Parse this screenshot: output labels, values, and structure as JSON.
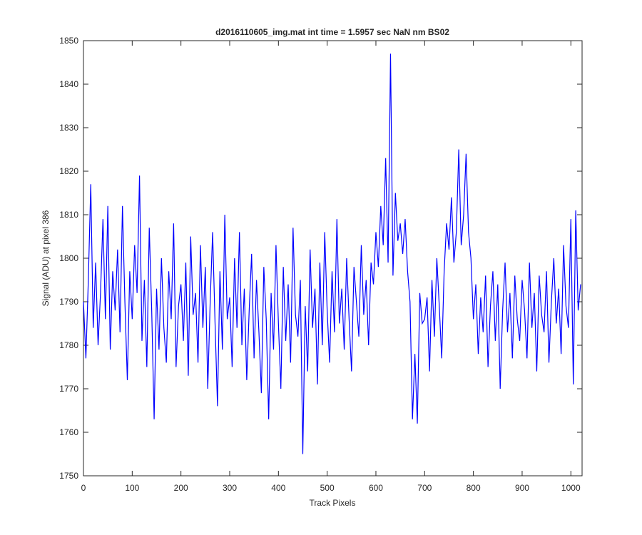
{
  "chart_data": {
    "type": "line",
    "title": "d2016110605_img.mat int time = 1.5957 sec  NaN nm BS02",
    "x_label": "Track Pixels",
    "y_label": "Signal (ADU) at pixel 386",
    "xlim": [
      0,
      1023
    ],
    "ylim": [
      1750,
      1850
    ],
    "xticks": [
      0,
      100,
      200,
      300,
      400,
      500,
      600,
      700,
      800,
      900,
      1000
    ],
    "yticks": [
      1750,
      1760,
      1770,
      1780,
      1790,
      1800,
      1810,
      1820,
      1830,
      1840,
      1850
    ],
    "series": [
      {
        "color": "#0000ff",
        "x": [
          0,
          5,
          10,
          15,
          20,
          25,
          30,
          35,
          40,
          45,
          50,
          55,
          60,
          65,
          70,
          75,
          80,
          85,
          90,
          95,
          100,
          105,
          110,
          115,
          120,
          125,
          130,
          135,
          140,
          145,
          150,
          155,
          160,
          165,
          170,
          175,
          180,
          185,
          190,
          195,
          200,
          205,
          210,
          215,
          220,
          225,
          230,
          235,
          240,
          245,
          250,
          255,
          260,
          265,
          270,
          275,
          280,
          285,
          290,
          295,
          300,
          305,
          310,
          315,
          320,
          325,
          330,
          335,
          340,
          345,
          350,
          355,
          360,
          365,
          370,
          375,
          380,
          385,
          390,
          395,
          400,
          405,
          410,
          415,
          420,
          425,
          430,
          435,
          440,
          445,
          450,
          455,
          460,
          465,
          470,
          475,
          480,
          485,
          490,
          495,
          500,
          505,
          510,
          515,
          520,
          525,
          530,
          535,
          540,
          545,
          550,
          555,
          560,
          565,
          570,
          575,
          580,
          585,
          590,
          595,
          600,
          605,
          610,
          615,
          620,
          625,
          630,
          635,
          640,
          645,
          650,
          655,
          660,
          665,
          670,
          675,
          680,
          685,
          690,
          695,
          700,
          705,
          710,
          715,
          720,
          725,
          730,
          735,
          740,
          745,
          750,
          755,
          760,
          765,
          770,
          775,
          780,
          785,
          790,
          795,
          800,
          805,
          810,
          815,
          820,
          825,
          830,
          835,
          840,
          845,
          850,
          855,
          860,
          865,
          870,
          875,
          880,
          885,
          890,
          895,
          900,
          905,
          910,
          915,
          920,
          925,
          930,
          935,
          940,
          945,
          950,
          955,
          960,
          965,
          970,
          975,
          980,
          985,
          990,
          995,
          1000,
          1005,
          1010,
          1015,
          1020
        ],
        "values": [
          1790,
          1777,
          1795,
          1817,
          1784,
          1799,
          1780,
          1792,
          1809,
          1786,
          1812,
          1779,
          1797,
          1788,
          1802,
          1783,
          1812,
          1790,
          1772,
          1797,
          1786,
          1803,
          1792,
          1819,
          1781,
          1795,
          1775,
          1807,
          1788,
          1763,
          1793,
          1779,
          1800,
          1784,
          1776,
          1797,
          1786,
          1808,
          1775,
          1789,
          1794,
          1781,
          1799,
          1773,
          1805,
          1787,
          1792,
          1776,
          1803,
          1784,
          1798,
          1770,
          1790,
          1806,
          1785,
          1766,
          1797,
          1779,
          1810,
          1786,
          1791,
          1775,
          1800,
          1784,
          1806,
          1780,
          1793,
          1772,
          1788,
          1801,
          1777,
          1795,
          1783,
          1769,
          1798,
          1786,
          1763,
          1792,
          1779,
          1803,
          1785,
          1770,
          1798,
          1781,
          1794,
          1776,
          1807,
          1787,
          1782,
          1795,
          1755,
          1789,
          1774,
          1802,
          1784,
          1793,
          1771,
          1799,
          1780,
          1806,
          1788,
          1776,
          1797,
          1783,
          1809,
          1785,
          1793,
          1779,
          1800,
          1786,
          1774,
          1798,
          1790,
          1782,
          1803,
          1787,
          1795,
          1780,
          1799,
          1794,
          1806,
          1798,
          1812,
          1803,
          1823,
          1799,
          1847,
          1796,
          1815,
          1804,
          1808,
          1801,
          1809,
          1797,
          1790,
          1763,
          1778,
          1762,
          1792,
          1785,
          1786,
          1791,
          1774,
          1795,
          1782,
          1800,
          1789,
          1777,
          1797,
          1808,
          1802,
          1814,
          1799,
          1806,
          1825,
          1803,
          1810,
          1824,
          1806,
          1800,
          1786,
          1794,
          1778,
          1791,
          1783,
          1796,
          1775,
          1789,
          1797,
          1781,
          1794,
          1770,
          1788,
          1799,
          1783,
          1792,
          1777,
          1796,
          1786,
          1781,
          1795,
          1788,
          1777,
          1799,
          1784,
          1792,
          1774,
          1796,
          1787,
          1783,
          1797,
          1776,
          1790,
          1800,
          1785,
          1793,
          1778,
          1803,
          1789,
          1784,
          1809,
          1771,
          1811,
          1788,
          1794
        ]
      }
    ]
  }
}
